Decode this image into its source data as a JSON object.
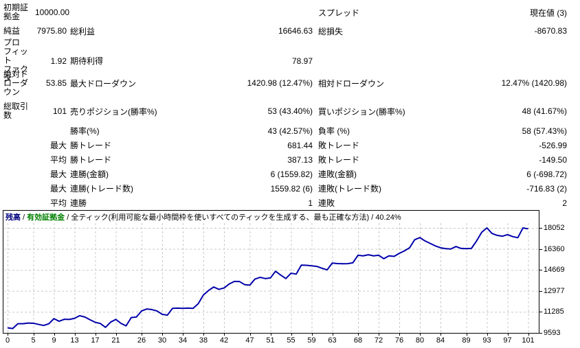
{
  "report": {
    "rows": [
      {
        "c1": "初期証\n拠金",
        "c2": "10000.00",
        "c3": "",
        "c4": "",
        "c5": "スプレッド",
        "c6": "現在値 (3)"
      },
      {
        "c1": "純益",
        "c2": "7975.80",
        "c3": "総利益",
        "c4": "16646.63",
        "c5": "総損失",
        "c6": "-8670.83"
      },
      {
        "c1": "プロ\nフィット\nファクタ",
        "c2": "1.92",
        "c3": "期待利得",
        "c4": "78.97",
        "c5": "",
        "c6": ""
      },
      {
        "c1": "絶対ド\nローダ\nウン",
        "c2": "53.85",
        "c3": "最大ドローダウン",
        "c4": "1420.98 (12.47%)",
        "c5": "相対ドローダウン",
        "c6": "12.47% (1420.98)"
      },
      {
        "c1": "総取引\n数",
        "c2": "101",
        "c3": "売りポジション(勝率%)",
        "c4": "53 (43.40%)",
        "c5": "買いポジション(勝率%)",
        "c6": "48 (41.67%)"
      },
      {
        "c1": "",
        "c2": "",
        "c3": "勝率(%)",
        "c4": "43 (42.57%)",
        "c5": "負率 (%)",
        "c6": "58 (57.43%)"
      },
      {
        "c1": "",
        "c2": "最大",
        "c3": "勝トレード",
        "c4": "681.44",
        "c5": "敗トレード",
        "c6": "-526.99"
      },
      {
        "c1": "",
        "c2": "平均",
        "c3": "勝トレード",
        "c4": "387.13",
        "c5": "敗トレード",
        "c6": "-149.50"
      },
      {
        "c1": "",
        "c2": "最大",
        "c3": "連勝(金額)",
        "c4": "6 (1559.82)",
        "c5": "連敗(金額)",
        "c6": "6 (-698.72)"
      },
      {
        "c1": "",
        "c2": "最大",
        "c3": "連勝(トレード数)",
        "c4": "1559.82 (6)",
        "c5": "連敗(トレード数)",
        "c6": "-716.83 (2)"
      },
      {
        "c1": "",
        "c2": "平均",
        "c3": "連勝",
        "c4": "1",
        "c5": "連敗",
        "c6": "2"
      }
    ]
  },
  "chart_data": {
    "type": "line",
    "legend_balance": "残高",
    "legend_equity": "有効証拠金",
    "separator": " / ",
    "model_description": "全ティック(利用可能な最小時間枠を使いすべてのティックを生成する、最も正確な方法)",
    "modeling_quality": "40.24%",
    "legend_balance_color": "#000080",
    "legend_equity_color": "#008000",
    "line_color": "#0000AA",
    "grid_color": "#C8C8C8",
    "x_ticks": [
      0,
      5,
      9,
      13,
      17,
      21,
      26,
      30,
      34,
      38,
      42,
      47,
      51,
      55,
      59,
      63,
      68,
      72,
      76,
      80,
      84,
      89,
      93,
      97,
      101
    ],
    "y_ticks": [
      9593,
      11285,
      12977,
      14669,
      16360,
      18052
    ],
    "x_range": [
      0,
      101
    ],
    "series": [
      {
        "name": "残高",
        "values": [
          10000,
          9946,
          10330,
          10330,
          10390,
          10370,
          10280,
          10190,
          10330,
          10740,
          10530,
          10690,
          10680,
          10770,
          10980,
          10870,
          10650,
          10450,
          10350,
          10040,
          10460,
          10680,
          10360,
          10160,
          10830,
          10870,
          11360,
          11520,
          11470,
          11360,
          11090,
          11020,
          11570,
          11590,
          11570,
          11590,
          11570,
          11950,
          12650,
          13010,
          13290,
          13100,
          13210,
          13530,
          13740,
          13730,
          13480,
          13440,
          13930,
          14070,
          13970,
          14020,
          14560,
          14250,
          13970,
          14400,
          14330,
          15050,
          15040,
          15000,
          14950,
          14800,
          14670,
          15220,
          15180,
          15160,
          15170,
          15240,
          15850,
          15800,
          15890,
          15800,
          15850,
          15570,
          15800,
          15760,
          16000,
          16200,
          16450,
          17100,
          17270,
          17000,
          16800,
          16600,
          16450,
          16380,
          16350,
          16550,
          16400,
          16380,
          16400,
          17000,
          17700,
          18052,
          17600,
          17450,
          17380,
          17510,
          17350,
          17260,
          18050,
          17975.8
        ]
      }
    ]
  }
}
